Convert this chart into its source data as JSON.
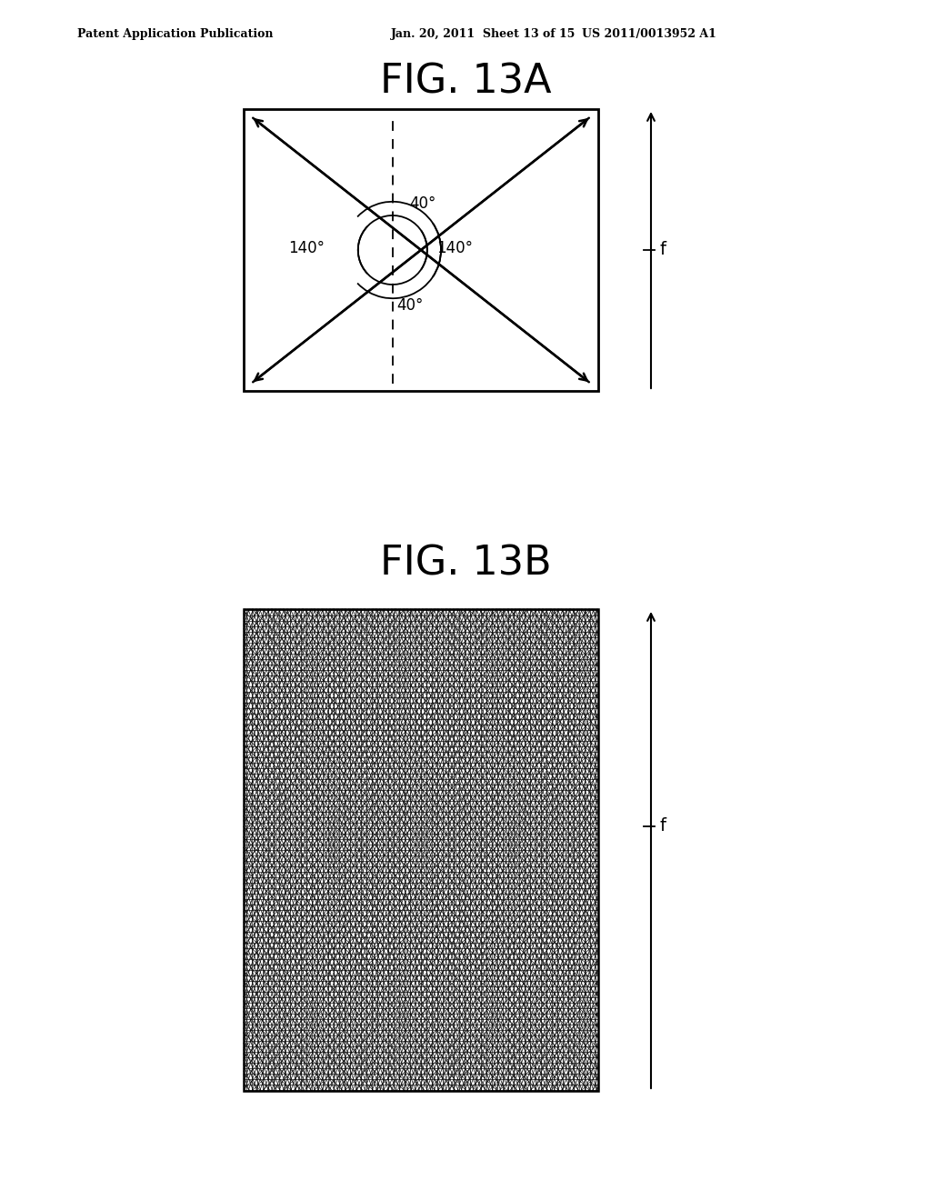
{
  "bg_color": "#ffffff",
  "header_left": "Patent Application Publication",
  "header_mid": "Jan. 20, 2011  Sheet 13 of 15",
  "header_right": "US 2011/0013952 A1",
  "fig13a_title": "FIG. 13A",
  "fig13b_title": "FIG. 13B",
  "angle_40_top": "40°",
  "angle_140_left": "140°",
  "angle_140_right": "140°",
  "angle_40_bottom": "40°",
  "label_f": "f"
}
